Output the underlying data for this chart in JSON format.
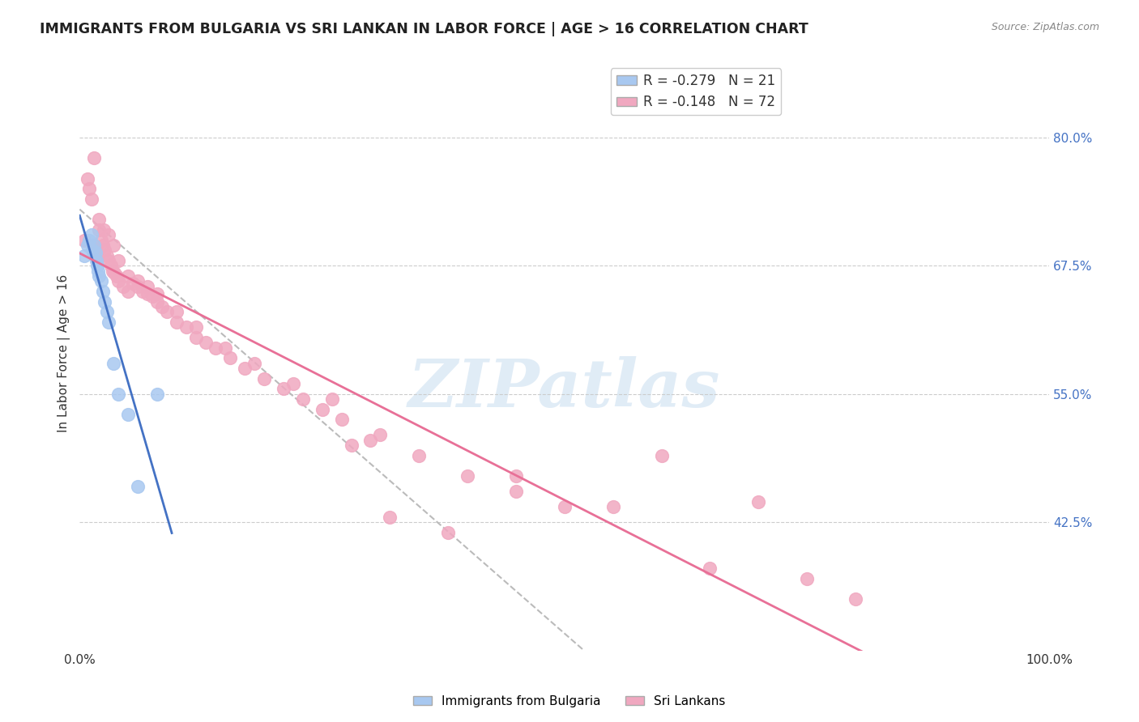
{
  "title": "IMMIGRANTS FROM BULGARIA VS SRI LANKAN IN LABOR FORCE | AGE > 16 CORRELATION CHART",
  "source": "Source: ZipAtlas.com",
  "ylabel": "In Labor Force | Age > 16",
  "ytick_labels": [
    "42.5%",
    "55.0%",
    "67.5%",
    "80.0%"
  ],
  "ytick_values": [
    0.425,
    0.55,
    0.675,
    0.8
  ],
  "bulgaria_color": "#a8c8f0",
  "srilanka_color": "#f0a8c0",
  "bulgaria_line_color": "#4472c4",
  "srilanka_line_color": "#e87097",
  "legend_label1": "Immigrants from Bulgaria",
  "legend_label2": "Sri Lankans",
  "bulgaria_R": -0.279,
  "bulgaria_N": 21,
  "srilanka_R": -0.148,
  "srilanka_N": 72,
  "bulgaria_scatter_x": [
    0.005,
    0.008,
    0.01,
    0.012,
    0.013,
    0.015,
    0.016,
    0.017,
    0.018,
    0.019,
    0.02,
    0.022,
    0.024,
    0.026,
    0.028,
    0.03,
    0.035,
    0.04,
    0.05,
    0.06,
    0.08
  ],
  "bulgaria_scatter_y": [
    0.685,
    0.695,
    0.7,
    0.705,
    0.69,
    0.695,
    0.688,
    0.68,
    0.675,
    0.67,
    0.665,
    0.66,
    0.65,
    0.64,
    0.63,
    0.62,
    0.58,
    0.55,
    0.53,
    0.46,
    0.55
  ],
  "srilanka_scatter_x": [
    0.005,
    0.008,
    0.01,
    0.012,
    0.014,
    0.016,
    0.018,
    0.02,
    0.022,
    0.024,
    0.026,
    0.028,
    0.03,
    0.032,
    0.034,
    0.036,
    0.038,
    0.04,
    0.045,
    0.05,
    0.055,
    0.06,
    0.065,
    0.07,
    0.075,
    0.08,
    0.085,
    0.09,
    0.1,
    0.11,
    0.12,
    0.13,
    0.14,
    0.155,
    0.17,
    0.19,
    0.21,
    0.23,
    0.25,
    0.27,
    0.3,
    0.015,
    0.02,
    0.025,
    0.03,
    0.035,
    0.04,
    0.05,
    0.06,
    0.07,
    0.08,
    0.1,
    0.12,
    0.15,
    0.18,
    0.22,
    0.26,
    0.31,
    0.35,
    0.4,
    0.45,
    0.5,
    0.6,
    0.7,
    0.75,
    0.8,
    0.65,
    0.55,
    0.45,
    0.38,
    0.32,
    0.28
  ],
  "srilanka_scatter_y": [
    0.7,
    0.76,
    0.75,
    0.74,
    0.695,
    0.69,
    0.685,
    0.71,
    0.7,
    0.695,
    0.69,
    0.685,
    0.68,
    0.675,
    0.67,
    0.668,
    0.665,
    0.66,
    0.655,
    0.65,
    0.658,
    0.655,
    0.65,
    0.648,
    0.645,
    0.64,
    0.635,
    0.63,
    0.62,
    0.615,
    0.605,
    0.6,
    0.595,
    0.585,
    0.575,
    0.565,
    0.555,
    0.545,
    0.535,
    0.525,
    0.505,
    0.78,
    0.72,
    0.71,
    0.705,
    0.695,
    0.68,
    0.665,
    0.66,
    0.655,
    0.648,
    0.63,
    0.615,
    0.595,
    0.58,
    0.56,
    0.545,
    0.51,
    0.49,
    0.47,
    0.455,
    0.44,
    0.49,
    0.445,
    0.37,
    0.35,
    0.38,
    0.44,
    0.47,
    0.415,
    0.43,
    0.5
  ],
  "xlim": [
    0.0,
    1.0
  ],
  "ylim": [
    0.3,
    0.88
  ],
  "bulgaria_trendline_x": [
    0.0,
    0.095
  ],
  "srilanka_trendline_x": [
    0.0,
    1.0
  ],
  "dashed_line_x": [
    0.0,
    0.52
  ],
  "dashed_line_y": [
    0.73,
    0.3
  ]
}
